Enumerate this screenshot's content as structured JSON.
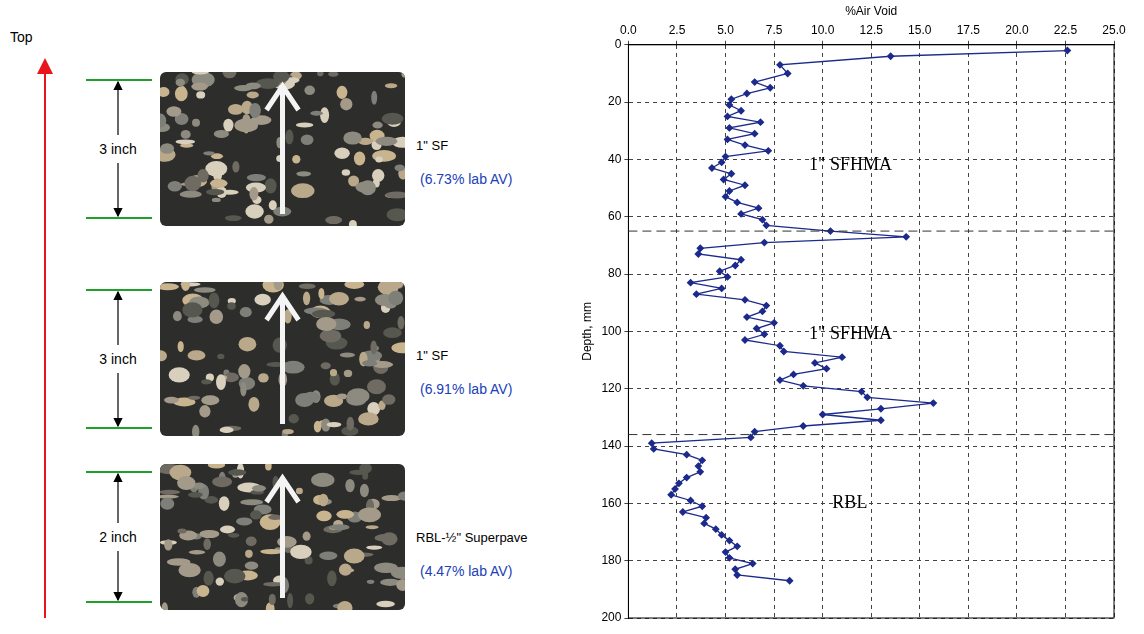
{
  "core_diagram": {
    "top_label": "Top",
    "cores": [
      {
        "thickness": "3 inch",
        "mix": "1\" SF",
        "lab_av": "(6.73% lab AV)"
      },
      {
        "thickness": "3 inch",
        "mix": "1\" SF",
        "lab_av": "(6.91% lab AV)"
      },
      {
        "thickness": "2 inch",
        "mix": "RBL-½\" Superpave",
        "lab_av": "(4.47% lab AV)"
      }
    ]
  },
  "chart_data": {
    "type": "line",
    "title": "%Air Void",
    "y_label": "Depth, mm",
    "color": "#1c2a8c",
    "marker": "diamond",
    "line_style": "solid",
    "grid": true,
    "xlim": [
      0,
      25
    ],
    "xticks": [
      {
        "value": 0,
        "label": "0.0"
      },
      {
        "value": 2.5,
        "label": "2.5"
      },
      {
        "value": 5,
        "label": "5.0"
      },
      {
        "value": 7.5,
        "label": "7.5"
      },
      {
        "value": 10,
        "label": "10.0"
      },
      {
        "value": 12.5,
        "label": "12.5"
      },
      {
        "value": 15,
        "label": "15.0"
      },
      {
        "value": 17.5,
        "label": "17.5"
      },
      {
        "value": 20,
        "label": "20.0"
      },
      {
        "value": 22.5,
        "label": "22.5"
      },
      {
        "value": 25,
        "label": "25.0"
      }
    ],
    "ylim": [
      200,
      0
    ],
    "yticks": [
      0,
      20,
      40,
      60,
      80,
      100,
      120,
      140,
      160,
      180,
      200
    ],
    "layer_boundaries": [
      65,
      136
    ],
    "annotations": [
      {
        "text": "1\" SFHMA",
        "x": 9.3,
        "y": 42
      },
      {
        "text": "1\" SFHMA",
        "x": 9.3,
        "y": 101
      },
      {
        "text": "RBL",
        "x": 10.5,
        "y": 160
      }
    ],
    "x": [
      22.6,
      13.5,
      7.8,
      8.2,
      6.5,
      7.3,
      6.1,
      5.3,
      5.2,
      5.8,
      5.1,
      6.8,
      5.2,
      6.5,
      5.1,
      6.0,
      7.2,
      5.0,
      4.8,
      4.3,
      5.3,
      4.9,
      6.0,
      5.2,
      5.0,
      5.6,
      6.7,
      5.8,
      6.9,
      7.1,
      10.4,
      14.3,
      7.0,
      3.7,
      3.6,
      5.8,
      5.5,
      4.7,
      5.1,
      3.2,
      4.8,
      3.5,
      6.0,
      7.1,
      6.9,
      6.1,
      7.5,
      6.6,
      7.0,
      6.0,
      7.8,
      8.0,
      11.0,
      9.6,
      10.2,
      8.5,
      7.8,
      9.0,
      12.0,
      12.3,
      15.7,
      13.0,
      10.0,
      13.0,
      9.0,
      6.5,
      6.3,
      1.2,
      1.3,
      3.0,
      3.8,
      3.6,
      3.7,
      3.0,
      2.6,
      2.4,
      2.2,
      3.2,
      3.8,
      2.8,
      4.0,
      3.9,
      4.5,
      4.8,
      5.2,
      5.6,
      5.0,
      5.2,
      6.4,
      5.5,
      5.6,
      8.3
    ],
    "values": [
      2,
      4,
      7,
      10,
      13,
      15,
      17,
      19,
      21,
      23,
      25,
      27,
      29,
      31,
      33,
      35,
      37,
      39,
      41,
      43,
      45,
      47,
      49,
      51,
      53,
      55,
      57,
      59,
      61,
      63,
      65,
      67,
      69,
      71,
      73,
      75,
      77,
      79,
      81,
      83,
      85,
      87,
      89,
      91,
      93,
      95,
      97,
      99,
      101,
      103,
      105,
      107,
      109,
      111,
      113,
      115,
      117,
      119,
      121,
      123,
      125,
      127,
      129,
      131,
      133,
      135,
      137,
      139,
      141,
      143,
      145,
      147,
      149,
      151,
      153,
      155,
      157,
      159,
      161,
      163,
      165,
      167,
      169,
      171,
      173,
      175,
      177,
      179,
      181,
      183,
      185,
      187
    ]
  }
}
